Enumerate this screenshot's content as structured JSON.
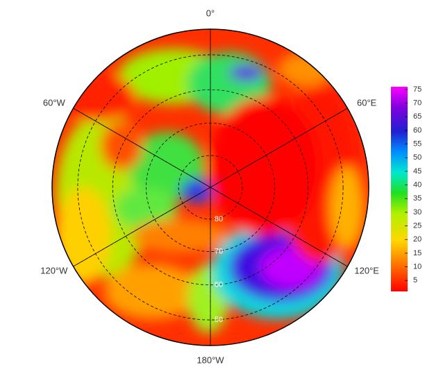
{
  "map": {
    "longitude_labels": [
      "0°",
      "60°E",
      "120°E",
      "180°W",
      "120°W",
      "60°W"
    ],
    "latitude_labels": [
      80,
      70,
      60,
      50
    ],
    "colorbar": {
      "lim": [
        1,
        76
      ],
      "ticks": [
        5,
        10,
        15,
        20,
        25,
        30,
        35,
        40,
        45,
        50,
        55,
        60,
        65,
        70,
        75
      ]
    }
  }
}
